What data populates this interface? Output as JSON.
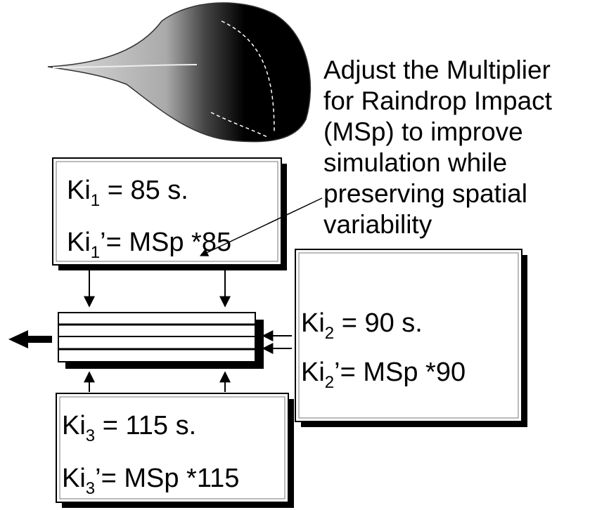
{
  "annotation": {
    "lines": [
      "Adjust the Multiplier",
      "for Raindrop Impact",
      "(MSp) to improve",
      "simulation while",
      "preserving spatial",
      "variability"
    ]
  },
  "boxes": [
    {
      "lines": [
        {
          "base": "Ki",
          "sub": "1",
          "rest": " = 85 s."
        },
        {
          "base": "Ki",
          "sub": "1",
          "rest": "’= MSp *85"
        }
      ]
    },
    {
      "lines": [
        {
          "base": "Ki",
          "sub": "2",
          "rest": " = 90 s."
        },
        {
          "base": "Ki",
          "sub": "2",
          "rest": "’= MSp *90"
        }
      ]
    },
    {
      "lines": [
        {
          "base": "Ki",
          "sub": "3",
          "rest": " = 115 s."
        },
        {
          "base": "Ki",
          "sub": "3",
          "rest": "’= MSp *115"
        }
      ]
    }
  ]
}
